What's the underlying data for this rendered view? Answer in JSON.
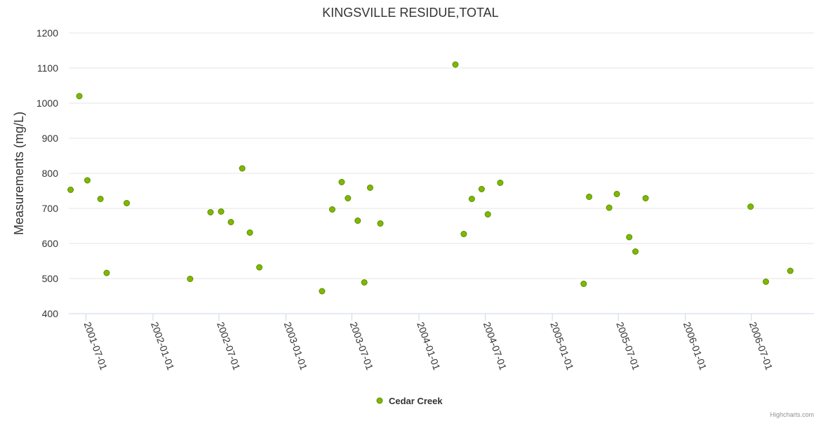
{
  "chart_data": {
    "type": "scatter",
    "title": "KINGSVILLE RESIDUE,TOTAL",
    "xlabel": "",
    "ylabel": "Measurements (mg/L)",
    "ylim": [
      400,
      1200
    ],
    "yticks": [
      400,
      500,
      600,
      700,
      800,
      900,
      1000,
      1100,
      1200
    ],
    "xlim": [
      "2001-05-15",
      "2006-12-20"
    ],
    "xticks": [
      "2001-07-01",
      "2002-01-01",
      "2002-07-01",
      "2003-01-01",
      "2003-07-01",
      "2004-01-01",
      "2004-07-01",
      "2005-01-01",
      "2005-07-01",
      "2006-01-01",
      "2006-07-01"
    ],
    "grid": true,
    "legend_position": "bottom-center",
    "series": [
      {
        "name": "Cedar Creek",
        "color": "#7fb800",
        "x": [
          "2001-05-20",
          "2001-06-13",
          "2001-07-05",
          "2001-08-10",
          "2001-08-27",
          "2001-10-21",
          "2002-04-13",
          "2002-06-08",
          "2002-07-07",
          "2002-08-03",
          "2002-09-03",
          "2002-09-24",
          "2002-10-20",
          "2003-04-10",
          "2003-05-08",
          "2003-06-03",
          "2003-06-20",
          "2003-07-17",
          "2003-08-04",
          "2003-08-20",
          "2003-09-17",
          "2004-04-10",
          "2004-05-03",
          "2004-05-25",
          "2004-06-21",
          "2004-07-08",
          "2004-08-11",
          "2005-03-28",
          "2005-04-12",
          "2005-06-06",
          "2005-06-27",
          "2005-07-31",
          "2005-08-17",
          "2005-09-14",
          "2006-06-29",
          "2006-08-10",
          "2006-10-16"
        ],
        "y": [
          753,
          1020,
          780,
          727,
          516,
          715,
          499,
          689,
          691,
          661,
          814,
          631,
          532,
          464,
          697,
          775,
          729,
          665,
          489,
          759,
          657,
          1110,
          627,
          727,
          755,
          683,
          773,
          485,
          733,
          702,
          741,
          618,
          577,
          729,
          705,
          491,
          522
        ]
      }
    ]
  },
  "credits": "Highcharts.com"
}
